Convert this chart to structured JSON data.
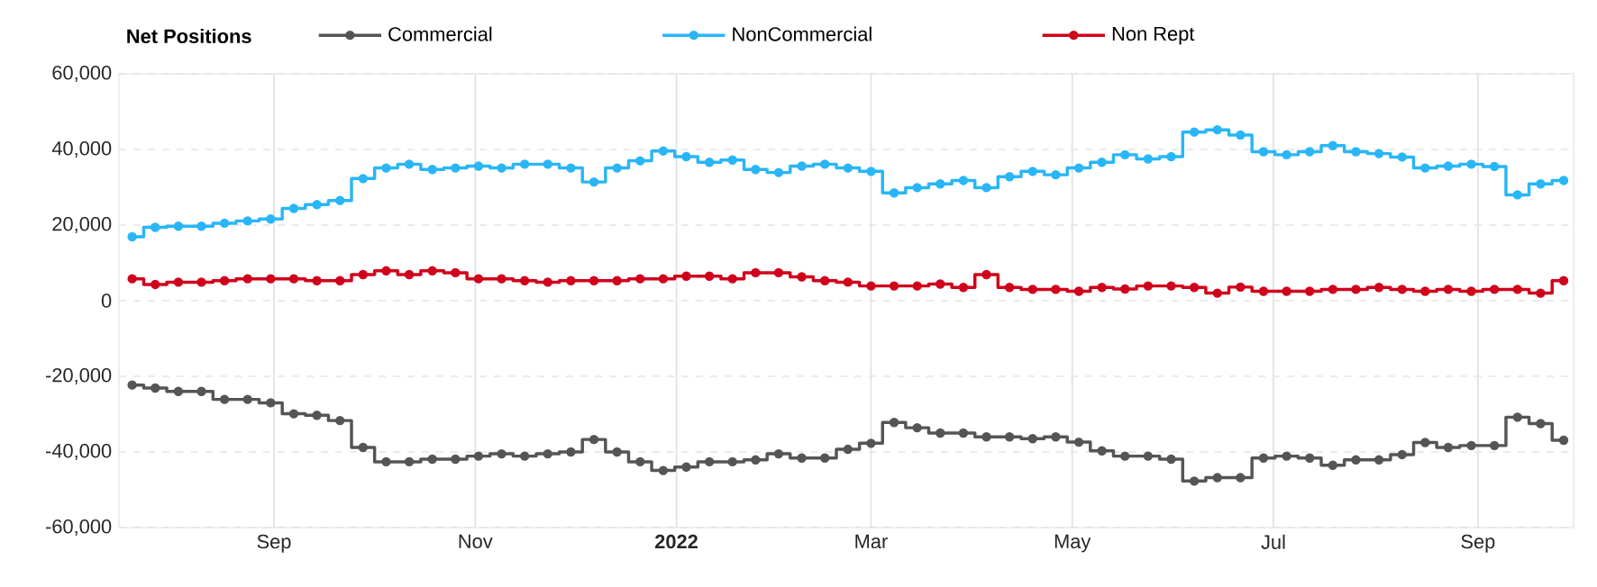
{
  "chart_data": {
    "type": "step",
    "title": "Net Positions",
    "legend": "top",
    "marker": "circle",
    "grid": true,
    "x": [
      "2021-07-20",
      "2021-07-27",
      "2021-08-03",
      "2021-08-10",
      "2021-08-17",
      "2021-08-24",
      "2021-08-31",
      "2021-09-07",
      "2021-09-14",
      "2021-09-21",
      "2021-09-28",
      "2021-10-05",
      "2021-10-12",
      "2021-10-19",
      "2021-10-26",
      "2021-11-02",
      "2021-11-09",
      "2021-11-16",
      "2021-11-23",
      "2021-11-30",
      "2021-12-07",
      "2021-12-14",
      "2021-12-21",
      "2021-12-28",
      "2022-01-04",
      "2022-01-11",
      "2022-01-18",
      "2022-01-25",
      "2022-02-01",
      "2022-02-08",
      "2022-02-15",
      "2022-02-22",
      "2022-03-01",
      "2022-03-08",
      "2022-03-15",
      "2022-03-22",
      "2022-03-29",
      "2022-04-05",
      "2022-04-12",
      "2022-04-19",
      "2022-04-26",
      "2022-05-03",
      "2022-05-10",
      "2022-05-17",
      "2022-05-24",
      "2022-05-31",
      "2022-06-07",
      "2022-06-14",
      "2022-06-21",
      "2022-06-28",
      "2022-07-05",
      "2022-07-12",
      "2022-07-19",
      "2022-07-26",
      "2022-08-02",
      "2022-08-09",
      "2022-08-16",
      "2022-08-23",
      "2022-08-30",
      "2022-09-06",
      "2022-09-13",
      "2022-09-20",
      "2022-09-27"
    ],
    "xlim": [
      "2021-07-16",
      "2022-09-30"
    ],
    "xticks": [
      {
        "value": "2021-09-01",
        "label": "Sep"
      },
      {
        "value": "2021-11-01",
        "label": "Nov"
      },
      {
        "value": "2022-01-01",
        "label": "2022"
      },
      {
        "value": "2022-03-01",
        "label": "Mar"
      },
      {
        "value": "2022-05-01",
        "label": "May"
      },
      {
        "value": "2022-07-01",
        "label": "Jul"
      },
      {
        "value": "2022-09-01",
        "label": "Sep"
      }
    ],
    "ylim": [
      -60000,
      60000
    ],
    "yticks": [
      {
        "value": -60000,
        "label": "-60,000"
      },
      {
        "value": -40000,
        "label": "-40,000"
      },
      {
        "value": -20000,
        "label": "-20,000"
      },
      0,
      {
        "value": 20000,
        "label": "20,000"
      },
      {
        "value": 40000,
        "label": "40,000"
      },
      {
        "value": 60000,
        "label": "60,000"
      }
    ],
    "series": [
      {
        "name": "Commercial",
        "color": "#555555",
        "values": [
          -22300,
          -23100,
          -24000,
          -24000,
          -26100,
          -26100,
          -27000,
          -29900,
          -30300,
          -31700,
          -38800,
          -42600,
          -42600,
          -41900,
          -41900,
          -41100,
          -40500,
          -41100,
          -40500,
          -40000,
          -36700,
          -40000,
          -42600,
          -44900,
          -44000,
          -42600,
          -42600,
          -42100,
          -40500,
          -41600,
          -41600,
          -39300,
          -37700,
          -32200,
          -33600,
          -35000,
          -35000,
          -36000,
          -36000,
          -36500,
          -36000,
          -37400,
          -39700,
          -41100,
          -41100,
          -41900,
          -47700,
          -46800,
          -46800,
          -41600,
          -41100,
          -41600,
          -43500,
          -42100,
          -42100,
          -40700,
          -37500,
          -38800,
          -38300,
          -38300,
          -30800,
          -32500,
          -36900
        ]
      },
      {
        "name": "NonCommercial",
        "color": "#29b6f6",
        "values": [
          16900,
          19400,
          19700,
          19700,
          20500,
          21100,
          21600,
          24400,
          25400,
          26500,
          32300,
          35100,
          36100,
          34700,
          35100,
          35600,
          35100,
          36100,
          36100,
          35100,
          31400,
          35100,
          37000,
          39600,
          38100,
          36600,
          37200,
          34700,
          33900,
          35600,
          36100,
          35100,
          34200,
          28500,
          29900,
          30900,
          31800,
          29900,
          32800,
          34200,
          33300,
          35100,
          36600,
          38600,
          37500,
          38100,
          44600,
          45200,
          43800,
          39400,
          38600,
          39400,
          41000,
          39400,
          38900,
          38000,
          35100,
          35600,
          36100,
          35500,
          28000,
          30900,
          31800
        ]
      },
      {
        "name": "Non Rept",
        "color": "#d0021b",
        "values": [
          5800,
          4300,
          4900,
          4900,
          5300,
          5800,
          5800,
          5800,
          5300,
          5300,
          6900,
          7900,
          6900,
          7900,
          7400,
          5800,
          5800,
          5300,
          4900,
          5300,
          5300,
          5300,
          5800,
          5800,
          6500,
          6500,
          5800,
          7400,
          7400,
          6300,
          5300,
          4900,
          3900,
          3900,
          3900,
          4400,
          3500,
          6900,
          3500,
          3000,
          3000,
          2500,
          3500,
          3100,
          3900,
          3900,
          3500,
          2000,
          3600,
          2500,
          2500,
          2500,
          3000,
          3000,
          3500,
          3000,
          2500,
          3000,
          2500,
          3000,
          3000,
          2000,
          5300
        ]
      }
    ]
  }
}
